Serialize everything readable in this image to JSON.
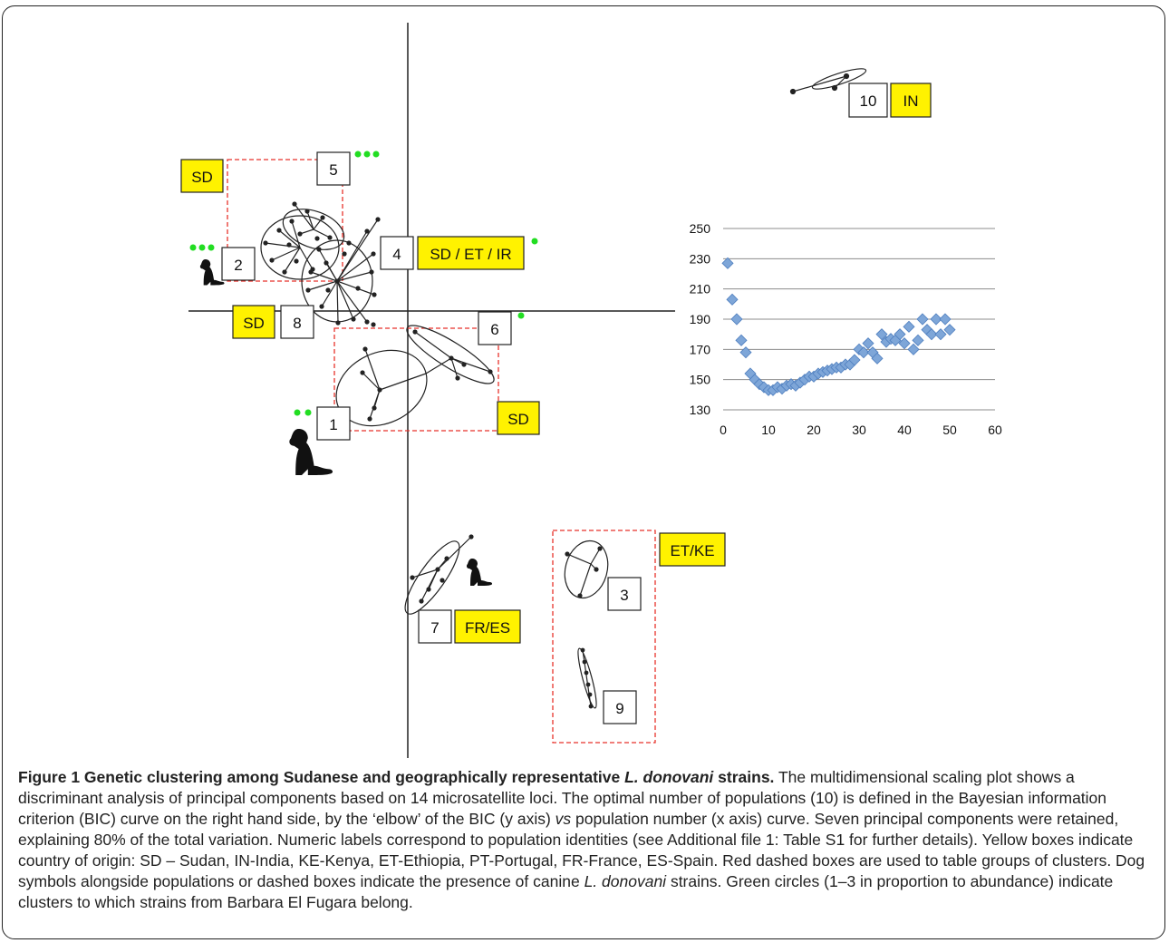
{
  "figure": {
    "title_prefix": "Figure 1 Genetic clustering among Sudanese and geographically representative ",
    "title_italic": "L. donovani",
    "title_suffix": " strains.",
    "caption_p1": " The multidimensional scaling plot shows a discriminant analysis of principal components based on 14 microsatellite loci. The optimal number of populations (10) is defined in the Bayesian information criterion (BIC) curve on the right hand side, by the ‘elbow’ of the BIC (y axis) ",
    "caption_vs": "vs",
    "caption_p2": " population number (x axis) curve. Seven principal components were retained, explaining 80% of the total variation. Numeric labels correspond to population identities (see Additional file 1: Table S1 for further details). Yellow boxes indicate country of origin: SD – Sudan, IN-India, KE-Kenya, ET-Ethiopia, PT-Portugal, FR-France, ES-Spain. Red dashed boxes are used to table groups of clusters. Dog symbols alongside populations or dashed boxes indicate the presence of canine ",
    "caption_italic2": "L. donovani",
    "caption_p3": " strains. Green circles (1–3 in proportion to abundance) indicate clusters to which strains from Barbara El Fugara belong."
  },
  "populations": [
    {
      "id": "1",
      "label": "1"
    },
    {
      "id": "2",
      "label": "2"
    },
    {
      "id": "3",
      "label": "3"
    },
    {
      "id": "4",
      "label": "4"
    },
    {
      "id": "5",
      "label": "5"
    },
    {
      "id": "6",
      "label": "6"
    },
    {
      "id": "7",
      "label": "7"
    },
    {
      "id": "8",
      "label": "8"
    },
    {
      "id": "9",
      "label": "9"
    },
    {
      "id": "10",
      "label": "10"
    }
  ],
  "countries": {
    "sd_top": "SD",
    "sd_left": "SD",
    "sd_right": "SD",
    "sd_et_ir": "SD / ET / IR",
    "in": "IN",
    "et_ke": "ET/KE",
    "fr_es": "FR/ES"
  },
  "colors": {
    "yellow_box": "#fff200",
    "red_dash": "#e8322b",
    "green_dot": "#22dd22",
    "bic_marker": "#7ea6d8",
    "bic_marker_edge": "#4f7fbf",
    "grid": "#8c8c8c"
  },
  "chart_data": {
    "type": "scatter",
    "title": "",
    "xlabel": "",
    "ylabel": "",
    "xlim": [
      0,
      60
    ],
    "ylim": [
      130,
      250
    ],
    "x_ticks": [
      "0",
      "10",
      "20",
      "30",
      "40",
      "50",
      "60"
    ],
    "y_ticks": [
      "130",
      "150",
      "170",
      "190",
      "210",
      "230",
      "250"
    ],
    "grid": true,
    "x": [
      1,
      2,
      3,
      4,
      5,
      6,
      7,
      8,
      9,
      10,
      11,
      12,
      13,
      14,
      15,
      16,
      17,
      18,
      19,
      20,
      21,
      22,
      23,
      24,
      25,
      26,
      27,
      28,
      29,
      30,
      31,
      32,
      33,
      34,
      35,
      36,
      37,
      38,
      39,
      40,
      41,
      42,
      43,
      44,
      45,
      46,
      47,
      48,
      49,
      50
    ],
    "y": [
      227,
      203,
      190,
      176,
      168,
      154,
      150,
      147,
      145,
      143,
      143,
      145,
      144,
      146,
      147,
      146,
      148,
      150,
      152,
      152,
      154,
      155,
      156,
      157,
      158,
      158,
      160,
      160,
      163,
      170,
      168,
      174,
      168,
      164,
      180,
      175,
      177,
      176,
      180,
      174,
      185,
      170,
      176,
      190,
      183,
      180,
      190,
      180,
      190,
      183
    ]
  }
}
